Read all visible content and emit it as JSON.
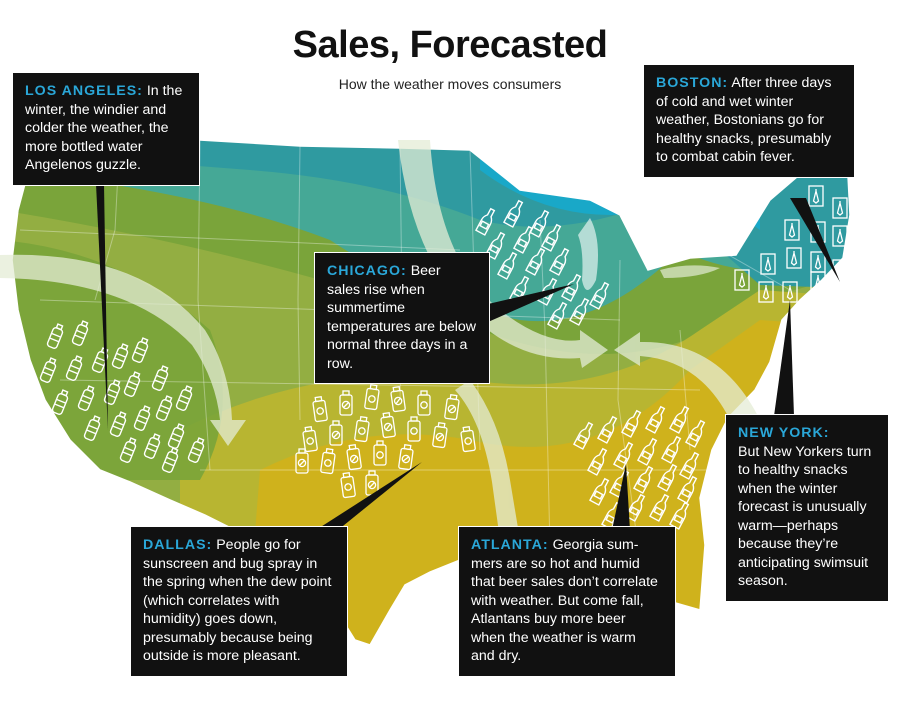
{
  "header": {
    "title": "Sales, Forecasted",
    "subtitle": "How the weather moves consumers"
  },
  "colors": {
    "teal": "#2f9aa0",
    "seafoam": "#45a896",
    "green": "#7aa43a",
    "olive_light": "#93ae42",
    "yellow_green": "#b8b531",
    "mustard": "#cfb21c",
    "lake_blue": "#19a8c8",
    "callout_bg": "#111111",
    "callout_city": "#2aa7d8",
    "arrow": "#e4ecd6"
  },
  "map": {
    "region": "Contiguous United States",
    "icons": {
      "los_angeles": "water-bottle-icon",
      "dallas": "sunscreen-bug-spray-icon",
      "chicago": "beer-bottle-icon",
      "atlanta": "beer-bottle-icon",
      "boston": "healthy-snack-carrot-icon"
    }
  },
  "callouts": {
    "los_angeles": {
      "city": "LOS ANGELES:",
      "text": "In the winter, the windier and colder the weather, the more bottled water Angelenos guzzle."
    },
    "boston": {
      "city": "BOSTON:",
      "text": "After three days of cold and wet winter weather, Bostonians go for healthy snacks, presum­ably to combat cabin fever."
    },
    "chicago": {
      "city": "CHICAGO:",
      "text": "Beer sales rise when summer­time temperatures are below normal three days in a row."
    },
    "new_york": {
      "city": "NEW YORK:",
      "text": "But New Yorkers turn to healthy snacks when the winter forecast is unusually warm—perhaps because they’re anticipating swimsuit season."
    },
    "dallas": {
      "city": "DALLAS:",
      "text": "People go for sunscreen and bug spray in the spring when the dew point (which correlates with humidity) goes down, presumably because being outside is more pleasant."
    },
    "atlanta": {
      "city": "ATLANTA:",
      "text": "Georgia sum­mers are so hot and humid that beer sales don’t correlate with weather. But come fall, Atlantans buy more beer when the weather is warm and dry."
    }
  }
}
